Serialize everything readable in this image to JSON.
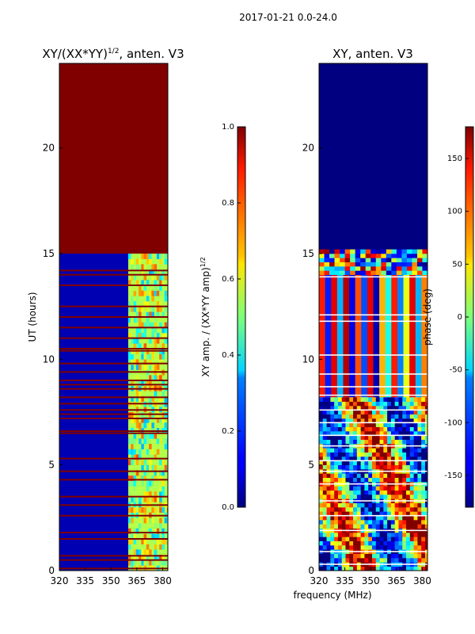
{
  "figure": {
    "suptitle": "2017-01-21 0.0-24.0",
    "xlabel": "frequency (MHz)"
  },
  "chart_data": [
    {
      "type": "heatmap",
      "title_prefix": "XY/(XX*YY)",
      "title_sup": "1/2",
      "title_suffix": ", anten. V3",
      "xlabel": "",
      "ylabel": "UT (hours)",
      "xlim": [
        320,
        383
      ],
      "ylim": [
        0,
        24
      ],
      "xticks": [
        320,
        335,
        350,
        365,
        380
      ],
      "yticks": [
        0,
        5,
        10,
        15,
        20
      ],
      "colorbar": {
        "label_prefix": "XY amp. / (XX*YY amp)",
        "label_sup": "1/2",
        "range": [
          0.0,
          1.0
        ],
        "ticks": [
          "0.0",
          "0.2",
          "0.4",
          "0.6",
          "0.8",
          "1.0"
        ],
        "tick_values": [
          0.0,
          0.2,
          0.4,
          0.6,
          0.8,
          1.0
        ],
        "colormap": "jet"
      },
      "regions": [
        {
          "name": "flagged",
          "t0": 15.0,
          "t1": 24.0,
          "value": 1.0
        },
        {
          "name": "valid",
          "t0": 0.0,
          "t1": 15.0,
          "value": 0.05
        },
        {
          "name": "high-freq-band",
          "t0": 0.0,
          "t1": 15.0,
          "f0": 360,
          "f1": 383,
          "value": 0.55
        }
      ],
      "flag_lines_hours": [
        0.1,
        0.5,
        0.7,
        1.5,
        1.8,
        2.6,
        3.1,
        3.5,
        4.3,
        4.7,
        5.3,
        6.5,
        6.6,
        7.2,
        7.4,
        7.6,
        7.9,
        8.2,
        8.6,
        8.8,
        9.0,
        9.4,
        9.8,
        10.4,
        10.5,
        11.0,
        11.5,
        12.0,
        12.5,
        13.5,
        14.0,
        14.2
      ]
    },
    {
      "type": "heatmap",
      "title": "XY, anten. V3",
      "xlabel": "",
      "ylabel": "",
      "xlim": [
        320,
        383
      ],
      "ylim": [
        0,
        24
      ],
      "xticks": [
        320,
        335,
        350,
        365,
        380
      ],
      "yticks": [
        0,
        5,
        10,
        15,
        20
      ],
      "colorbar": {
        "label": "phase (deg)",
        "range": [
          -180,
          180
        ],
        "ticks": [
          "-150",
          "-100",
          "-50",
          "0",
          "50",
          "100",
          "150"
        ],
        "tick_values": [
          -150,
          -100,
          -50,
          0,
          50,
          100,
          150
        ],
        "colormap": "jet"
      },
      "regions": [
        {
          "name": "flagged",
          "t0": 15.0,
          "t1": 24.0,
          "value": -180
        },
        {
          "name": "striped",
          "t0": 8.2,
          "t1": 14.0,
          "value": "alternating"
        },
        {
          "name": "noisy",
          "t0": 0.0,
          "t1": 8.2,
          "value": "random"
        }
      ]
    }
  ]
}
